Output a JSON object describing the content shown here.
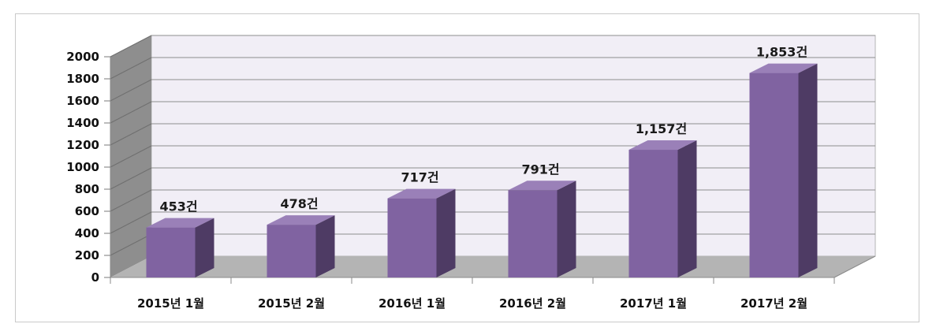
{
  "chart_data": {
    "type": "bar",
    "title": "",
    "xlabel": "",
    "ylabel": "",
    "categories": [
      "2015년 1월",
      "2015년 2월",
      "2016년 1월",
      "2016년 2월",
      "2017년 1월",
      "2017년 2월"
    ],
    "values": [
      453,
      478,
      717,
      791,
      1157,
      1853
    ],
    "data_labels": [
      "453건",
      "478건",
      "717건",
      "791건",
      "1,157건",
      "1,853건"
    ],
    "ylim": [
      0,
      2000
    ],
    "yticks": [
      "0",
      "200",
      "400",
      "600",
      "800",
      "1000",
      "1200",
      "1400",
      "1600",
      "1800",
      "2000"
    ],
    "grid": true,
    "legend": "none",
    "style": "3d-column",
    "colors": {
      "bar_front": "#8063a1",
      "bar_side": "#4e3b64",
      "bar_top": "#9a80b8",
      "back_wall": "#f1eef6",
      "side_wall": "#8e8e8e",
      "floor": "#b4b4b4",
      "gridline": "#8d8d8d"
    }
  }
}
